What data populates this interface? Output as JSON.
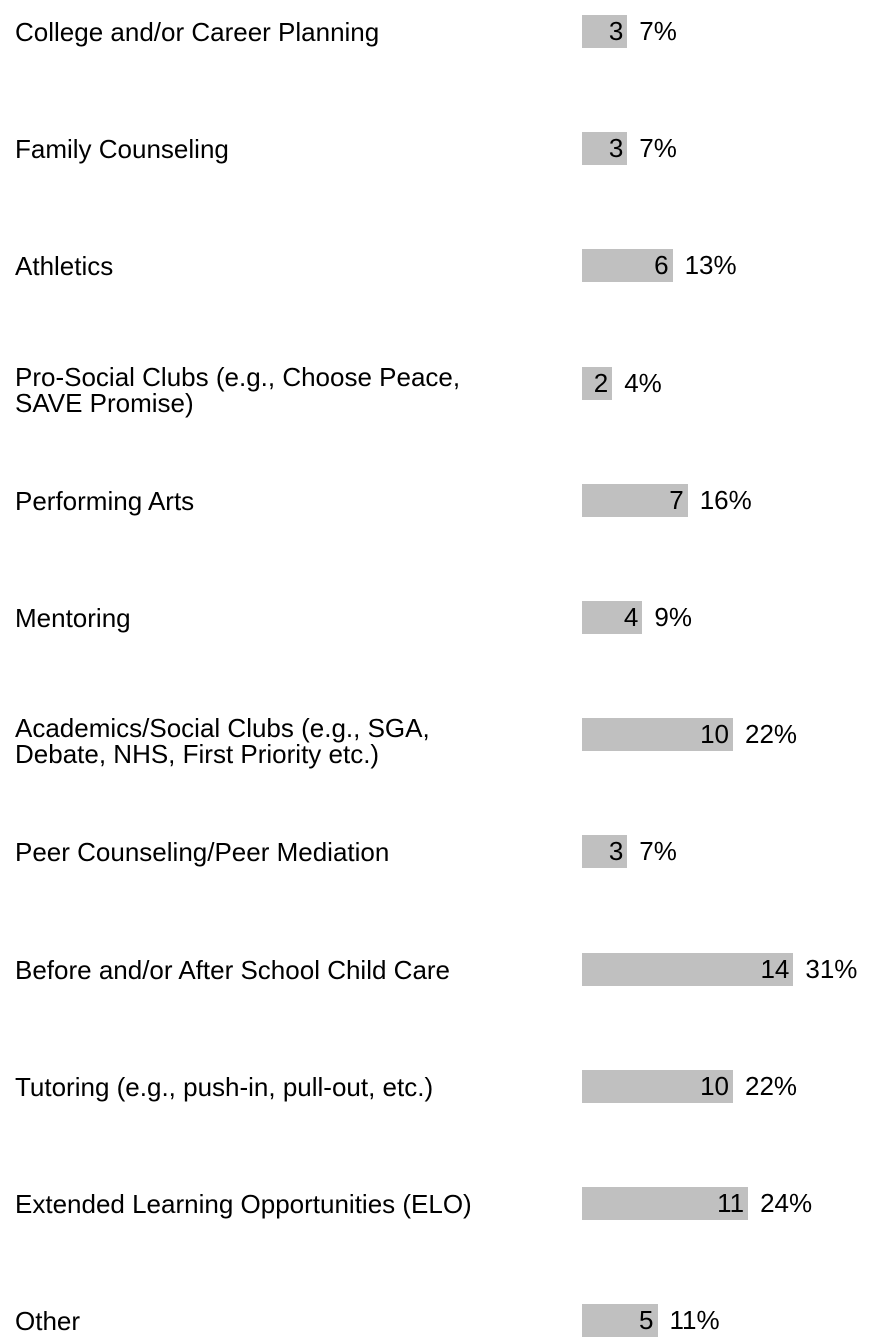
{
  "chart_data": {
    "type": "bar",
    "orientation": "horizontal",
    "categories": [
      [
        "College and/or Career Planning"
      ],
      [
        "Family Counseling"
      ],
      [
        "Athletics"
      ],
      [
        "Pro-Social Clubs (e.g., Choose Peace,",
        "SAVE Promise)"
      ],
      [
        "Performing Arts"
      ],
      [
        "Mentoring"
      ],
      [
        "Academics/Social Clubs (e.g., SGA,",
        "Debate, NHS, First Priority etc.)"
      ],
      [
        "Peer Counseling/Peer Mediation"
      ],
      [
        "Before and/or After School Child Care"
      ],
      [
        "Tutoring (e.g., push-in, pull-out, etc.)"
      ],
      [
        "Extended Learning Opportunities (ELO)"
      ],
      [
        "Other"
      ]
    ],
    "values": [
      3,
      3,
      6,
      2,
      7,
      4,
      10,
      3,
      14,
      10,
      11,
      5
    ],
    "percentages": [
      "7%",
      "7%",
      "13%",
      "4%",
      "16%",
      "9%",
      "22%",
      "7%",
      "31%",
      "22%",
      "24%",
      "11%"
    ],
    "bar_color": "#c0c0c0",
    "grid": false,
    "legend": "none"
  }
}
